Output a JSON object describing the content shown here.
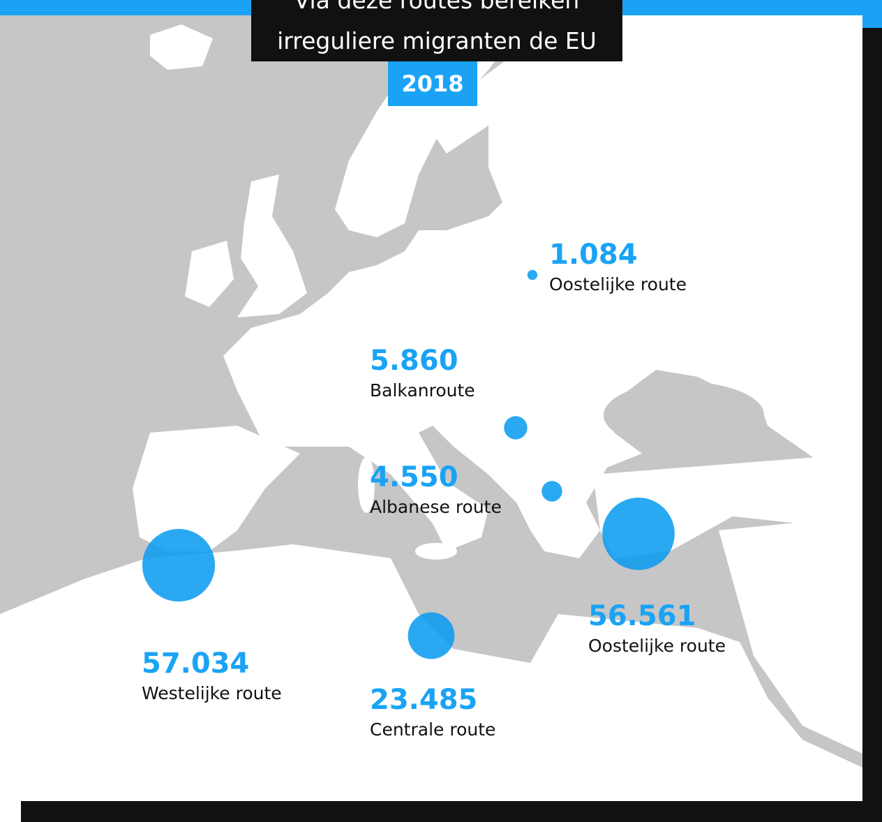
{
  "header": {
    "title_lines": [
      "Via deze routes bereiken",
      "irreguliere migranten de EU"
    ],
    "year": "2018"
  },
  "routes": [
    {
      "value": 1084,
      "value_label": "1.084",
      "name": "Oostelijke route"
    },
    {
      "value": 5860,
      "value_label": "5.860",
      "name": "Balkanroute"
    },
    {
      "value": 4550,
      "value_label": "4.550",
      "name": "Albanese route"
    },
    {
      "value": 56561,
      "value_label": "56.561",
      "name": "Oostelijke route"
    },
    {
      "value": 57034,
      "value_label": "57.034",
      "name": "Westelijke route"
    },
    {
      "value": 23485,
      "value_label": "23.485",
      "name": "Centrale route"
    }
  ]
}
